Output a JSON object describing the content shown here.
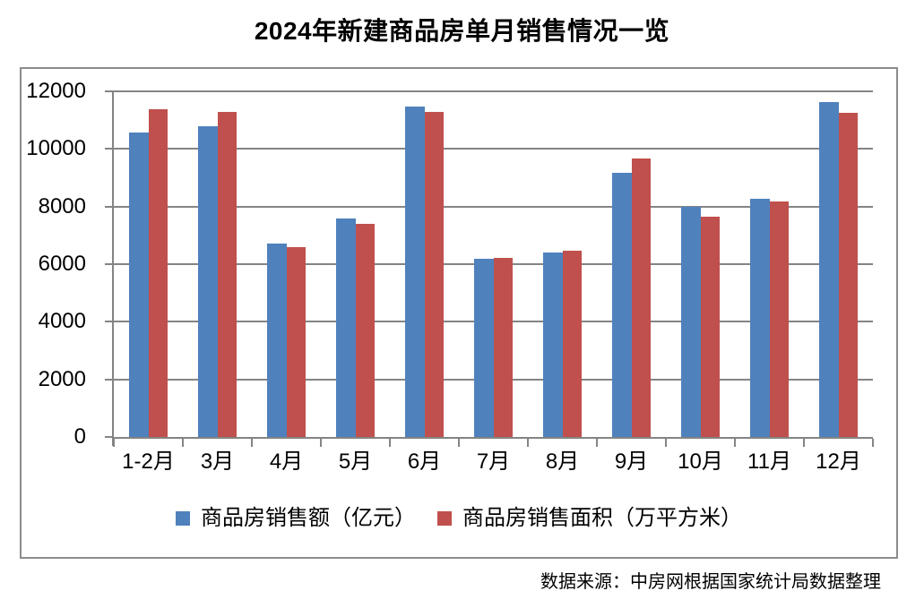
{
  "title": "2024年新建商品房单月销售情况一览",
  "source": "数据来源：中房网根据国家统计局数据整理",
  "colors": {
    "series1": "#4F81BD",
    "series2": "#C0504D",
    "grid": "#848484",
    "axis": "#848484",
    "frame_border": "#8C8C8C",
    "text": "#000000",
    "background": "#FFFFFF"
  },
  "chart_data": {
    "type": "bar",
    "title": "2024年新建商品房单月销售情况一览",
    "categories": [
      "1-2月",
      "3月",
      "4月",
      "5月",
      "6月",
      "7月",
      "8月",
      "9月",
      "10月",
      "11月",
      "12月"
    ],
    "series": [
      {
        "name": "商品房销售额（亿元）",
        "key": "sales-amount",
        "color": "#4F81BD",
        "values": [
          10566,
          10789,
          6712,
          7598,
          11468,
          6197,
          6393,
          9157,
          7975,
          8270,
          11625
        ]
      },
      {
        "name": "商品房销售面积（万平方米）",
        "key": "sales-area",
        "color": "#C0504D",
        "values": [
          11369,
          11299,
          6584,
          7390,
          11274,
          6233,
          6453,
          9682,
          7646,
          8188,
          11267
        ]
      }
    ],
    "xlabel": "",
    "ylabel": "",
    "ylim": [
      0,
      12000
    ],
    "yticks": [
      0,
      2000,
      4000,
      6000,
      8000,
      10000,
      12000
    ],
    "grid": true,
    "legend_position": "bottom-center",
    "source_note": "数据来源：中房网根据国家统计局数据整理"
  }
}
